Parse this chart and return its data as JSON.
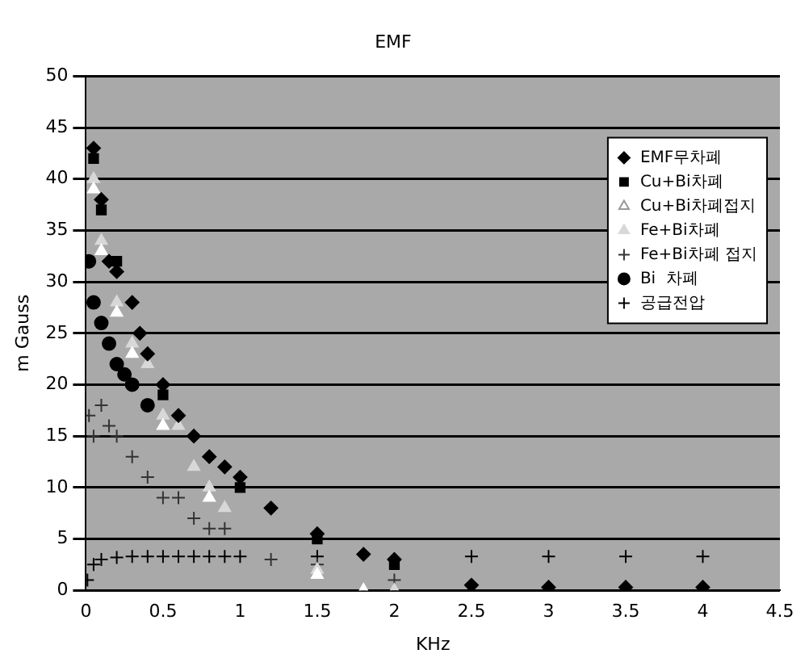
{
  "chart_data": {
    "type": "scatter",
    "title": "EMF",
    "xlabel": "KHz",
    "ylabel": "m Gauss",
    "xlim": [
      0,
      4.5
    ],
    "xticks": [
      0,
      0.5,
      1,
      1.5,
      2,
      2.5,
      3,
      3.5,
      4,
      4.5
    ],
    "ylim": [
      0,
      50
    ],
    "yticks": [
      0,
      5,
      10,
      15,
      20,
      25,
      30,
      35,
      40,
      45,
      50
    ],
    "grid": "y",
    "legend": "top right",
    "series": [
      {
        "name": "EMF무차폐",
        "color": "#000000",
        "marker": "diamond",
        "x": [
          0.05,
          0.1,
          0.15,
          0.2,
          0.3,
          0.35,
          0.4,
          0.5,
          0.6,
          0.7,
          0.8,
          0.9,
          1,
          1.2,
          1.5,
          1.8,
          2,
          2.5,
          3,
          3.5,
          4
        ],
        "values": [
          43,
          38,
          32,
          31,
          28,
          25,
          23,
          20,
          17,
          15,
          13,
          12,
          11,
          8,
          5.5,
          3.5,
          3,
          0.5,
          0.3,
          0.3,
          0.3
        ]
      },
      {
        "name": "Cu+Bi차폐",
        "color": "#000000",
        "marker": "square",
        "x": [
          0.05,
          0.1,
          0.2,
          0.5,
          1,
          1.5,
          2
        ],
        "values": [
          42,
          37,
          32,
          19,
          10,
          5,
          2.5
        ]
      },
      {
        "name": "Cu+Bi차폐접지",
        "color": "#ffffff",
        "marker": "triangle",
        "x": [
          0.05,
          0.1,
          0.2,
          0.3,
          0.5,
          0.8,
          1.5,
          1.8
        ],
        "values": [
          39,
          33,
          27,
          23,
          16,
          9,
          1.5,
          0
        ]
      },
      {
        "name": "Fe+Bi차폐",
        "color": "#d8d8d8",
        "marker": "triangle",
        "x": [
          0.05,
          0.1,
          0.2,
          0.3,
          0.4,
          0.5,
          0.6,
          0.7,
          0.8,
          0.9,
          1.5,
          1.8,
          2
        ],
        "values": [
          40,
          34,
          28,
          24,
          22,
          17,
          16,
          12,
          10,
          8,
          2,
          0,
          0
        ]
      },
      {
        "name": "Fe+Bi차폐 접지",
        "color": "#333333",
        "marker": "cross",
        "x": [
          0.02,
          0.05,
          0.1,
          0.15,
          0.2,
          0.3,
          0.4,
          0.5,
          0.6,
          0.7,
          0.8,
          0.9,
          1.2,
          1.5,
          2
        ],
        "values": [
          17,
          15,
          18,
          16,
          15,
          13,
          11,
          9,
          9,
          7,
          6,
          6,
          3,
          2.5,
          1
        ]
      },
      {
        "name": "Bi  차폐",
        "color": "#000000",
        "marker": "circle",
        "x": [
          0.02,
          0.05,
          0.1,
          0.15,
          0.2,
          0.25,
          0.3,
          0.4
        ],
        "values": [
          32,
          28,
          26,
          24,
          22,
          21,
          20,
          18
        ]
      },
      {
        "name": "공급전압",
        "color": "#000000",
        "marker": "cross",
        "x": [
          0.01,
          0.05,
          0.1,
          0.2,
          0.3,
          0.4,
          0.5,
          0.6,
          0.7,
          0.8,
          0.9,
          1,
          1.5,
          2,
          2.5,
          3,
          3.5,
          4
        ],
        "values": [
          1,
          2.5,
          3,
          3.2,
          3.3,
          3.3,
          3.3,
          3.3,
          3.3,
          3.3,
          3.3,
          3.3,
          3.3,
          null,
          3.3,
          3.3,
          3.3,
          3.3
        ]
      }
    ]
  }
}
